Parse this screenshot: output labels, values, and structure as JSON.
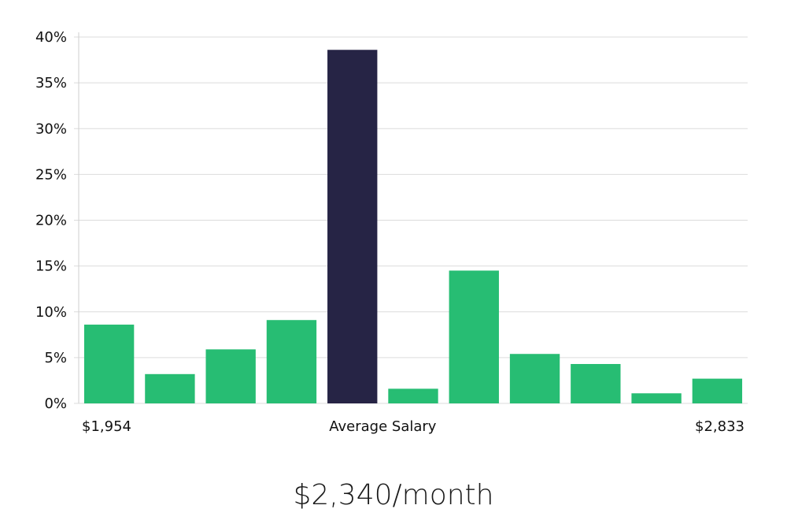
{
  "chart_data": {
    "type": "bar",
    "values": [
      8.6,
      3.2,
      5.9,
      9.1,
      38.6,
      1.6,
      14.5,
      5.4,
      4.3,
      1.1,
      2.7
    ],
    "highlight_index": 4,
    "ylim": [
      0,
      40
    ],
    "yticks": [
      "0%",
      "5%",
      "10%",
      "15%",
      "20%",
      "25%",
      "30%",
      "35%",
      "40%"
    ],
    "x_labels": {
      "left": "$1,954",
      "center": "Average Salary",
      "right": "$2,833"
    },
    "grid": true,
    "colors": {
      "bar": "#27bd73",
      "highlight": "#262445",
      "grid": "#dcdcdc",
      "axis": "#cfcfcf"
    }
  },
  "headline": "$2,340/month"
}
